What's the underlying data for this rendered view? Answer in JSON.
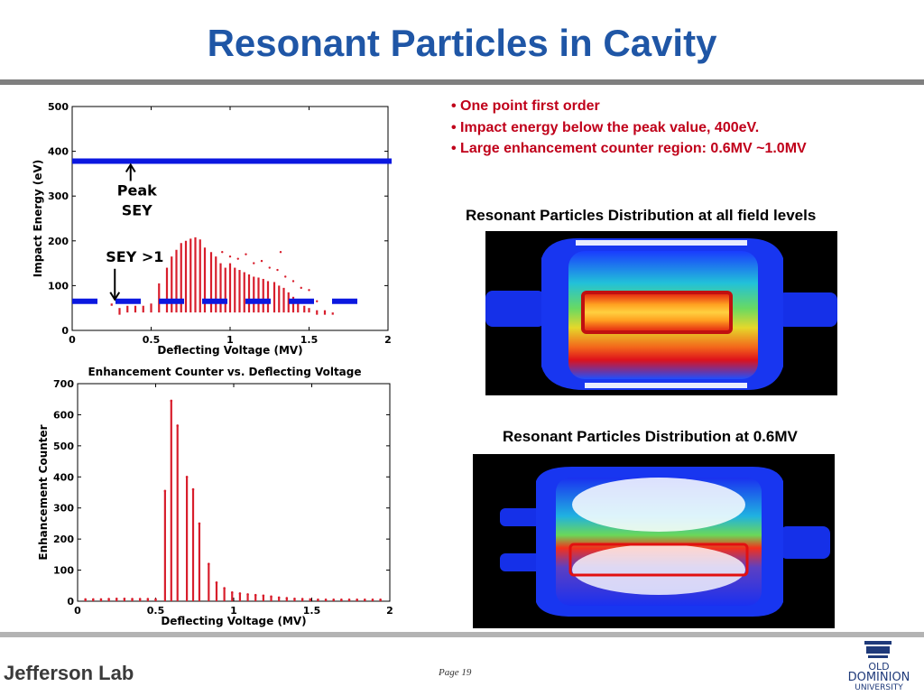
{
  "slide": {
    "title": "Resonant Particles in Cavity",
    "page": "Page 19"
  },
  "bullets": [
    "• One point first order",
    "• Impact energy below the peak value, 400eV.",
    "• Large enhancement counter region: 0.6MV ~1.0MV"
  ],
  "captions": {
    "all_levels": "Resonant Particles Distribution at all field levels",
    "at_06": "Resonant Particles Distribution at 0.6MV"
  },
  "logos": {
    "jefferson": "Jefferson Lab",
    "odu_line1": "OLD",
    "odu_line2": "DOMINION",
    "odu_line3": "UNIVERSITY"
  },
  "colors": {
    "title": "#1f56a6",
    "bullet_text": "#c0001a",
    "data_red": "#d81e2c",
    "sey_blue": "#0b18e0"
  },
  "chart_data": [
    {
      "type": "scatter",
      "title": "",
      "xlabel": "Deflecting Voltage (MV)",
      "ylabel": "Impact Energy (eV)",
      "xlim": [
        0,
        2
      ],
      "ylim": [
        0,
        500
      ],
      "xticks": [
        0,
        0.5,
        1,
        1.5,
        2
      ],
      "xtick_labels": [
        "0",
        "0.5",
        "1",
        "1.5",
        "2"
      ],
      "yticks": [
        0,
        100,
        200,
        300,
        400,
        500
      ],
      "ytick_labels": [
        "0",
        "100",
        "200",
        "300",
        "400",
        "500"
      ],
      "series": [
        {
          "kind": "vertical-spread",
          "columns": [
            {
              "x": 0.25,
              "ymin": 55,
              "ymax": 60
            },
            {
              "x": 0.3,
              "ymin": 35,
              "ymax": 50
            },
            {
              "x": 0.35,
              "ymin": 40,
              "ymax": 55
            },
            {
              "x": 0.4,
              "ymin": 40,
              "ymax": 55
            },
            {
              "x": 0.45,
              "ymin": 40,
              "ymax": 55
            },
            {
              "x": 0.5,
              "ymin": 40,
              "ymax": 60
            },
            {
              "x": 0.55,
              "ymin": 40,
              "ymax": 105
            },
            {
              "x": 0.6,
              "ymin": 40,
              "ymax": 140
            },
            {
              "x": 0.63,
              "ymin": 40,
              "ymax": 165
            },
            {
              "x": 0.66,
              "ymin": 40,
              "ymax": 180
            },
            {
              "x": 0.69,
              "ymin": 40,
              "ymax": 195
            },
            {
              "x": 0.72,
              "ymin": 40,
              "ymax": 200
            },
            {
              "x": 0.75,
              "ymin": 40,
              "ymax": 205
            },
            {
              "x": 0.78,
              "ymin": 40,
              "ymax": 208
            },
            {
              "x": 0.81,
              "ymin": 40,
              "ymax": 203
            },
            {
              "x": 0.84,
              "ymin": 40,
              "ymax": 185
            },
            {
              "x": 0.88,
              "ymin": 40,
              "ymax": 175
            },
            {
              "x": 0.91,
              "ymin": 40,
              "ymax": 165
            },
            {
              "x": 0.94,
              "ymin": 40,
              "ymax": 150
            },
            {
              "x": 0.97,
              "ymin": 40,
              "ymax": 140
            },
            {
              "x": 1.0,
              "ymin": 40,
              "ymax": 150
            },
            {
              "x": 1.03,
              "ymin": 40,
              "ymax": 140
            },
            {
              "x": 1.06,
              "ymin": 40,
              "ymax": 135
            },
            {
              "x": 1.09,
              "ymin": 40,
              "ymax": 130
            },
            {
              "x": 1.12,
              "ymin": 40,
              "ymax": 125
            },
            {
              "x": 1.15,
              "ymin": 40,
              "ymax": 120
            },
            {
              "x": 1.18,
              "ymin": 40,
              "ymax": 118
            },
            {
              "x": 1.21,
              "ymin": 40,
              "ymax": 115
            },
            {
              "x": 1.24,
              "ymin": 40,
              "ymax": 110
            },
            {
              "x": 1.28,
              "ymin": 40,
              "ymax": 108
            },
            {
              "x": 1.31,
              "ymin": 40,
              "ymax": 100
            },
            {
              "x": 1.34,
              "ymin": 40,
              "ymax": 95
            },
            {
              "x": 1.37,
              "ymin": 40,
              "ymax": 85
            },
            {
              "x": 1.4,
              "ymin": 40,
              "ymax": 75
            },
            {
              "x": 1.43,
              "ymin": 40,
              "ymax": 65
            },
            {
              "x": 1.47,
              "ymin": 40,
              "ymax": 55
            },
            {
              "x": 1.5,
              "ymin": 40,
              "ymax": 50
            },
            {
              "x": 1.55,
              "ymin": 35,
              "ymax": 45
            },
            {
              "x": 1.6,
              "ymin": 35,
              "ymax": 45
            },
            {
              "x": 1.65,
              "ymin": 35,
              "ymax": 40
            }
          ],
          "scatter_points": [
            {
              "x": 0.95,
              "y": 175
            },
            {
              "x": 1.0,
              "y": 165
            },
            {
              "x": 1.05,
              "y": 160
            },
            {
              "x": 1.1,
              "y": 170
            },
            {
              "x": 1.15,
              "y": 150
            },
            {
              "x": 1.2,
              "y": 155
            },
            {
              "x": 1.25,
              "y": 140
            },
            {
              "x": 1.3,
              "y": 135
            },
            {
              "x": 1.35,
              "y": 120
            },
            {
              "x": 1.4,
              "y": 110
            },
            {
              "x": 1.45,
              "y": 95
            },
            {
              "x": 1.5,
              "y": 90
            },
            {
              "x": 1.55,
              "y": 65
            },
            {
              "x": 1.32,
              "y": 175
            }
          ]
        }
      ],
      "reference_lines": [
        {
          "name": "Peak SEY",
          "y": 378,
          "style": "solid"
        },
        {
          "name": "SEY >1",
          "y": 65,
          "style": "dashed"
        }
      ],
      "annotations": [
        {
          "text_lines": [
            "Peak",
            "SEY"
          ],
          "arrow_to": {
            "x": 0.37,
            "y": 378
          }
        },
        {
          "text": "SEY >1",
          "arrow_to": {
            "x": 0.27,
            "y": 65
          }
        }
      ]
    },
    {
      "type": "bar",
      "title": "Enhancement Counter vs. Deflecting Voltage",
      "xlabel": "Deflecting Voltage (MV)",
      "ylabel": "Enhancement Counter",
      "xlim": [
        0,
        2
      ],
      "ylim": [
        0,
        700
      ],
      "xticks": [
        0,
        0.5,
        1,
        1.5,
        2
      ],
      "xtick_labels": [
        "0",
        "0.5",
        "1",
        "1.5",
        "2"
      ],
      "yticks": [
        0,
        100,
        200,
        300,
        400,
        500,
        600,
        700
      ],
      "ytick_labels": [
        "0",
        "100",
        "200",
        "300",
        "400",
        "500",
        "600",
        "700"
      ],
      "spikes": [
        {
          "x": 0.05,
          "y": 6
        },
        {
          "x": 0.1,
          "y": 6
        },
        {
          "x": 0.15,
          "y": 6
        },
        {
          "x": 0.2,
          "y": 7
        },
        {
          "x": 0.25,
          "y": 8
        },
        {
          "x": 0.3,
          "y": 8
        },
        {
          "x": 0.35,
          "y": 7
        },
        {
          "x": 0.4,
          "y": 7
        },
        {
          "x": 0.45,
          "y": 7
        },
        {
          "x": 0.5,
          "y": 6
        },
        {
          "x": 0.56,
          "y": 355
        },
        {
          "x": 0.6,
          "y": 645
        },
        {
          "x": 0.64,
          "y": 565
        },
        {
          "x": 0.7,
          "y": 400
        },
        {
          "x": 0.74,
          "y": 360
        },
        {
          "x": 0.78,
          "y": 250
        },
        {
          "x": 0.84,
          "y": 120
        },
        {
          "x": 0.89,
          "y": 60
        },
        {
          "x": 0.94,
          "y": 42
        },
        {
          "x": 0.99,
          "y": 28
        },
        {
          "x": 1.04,
          "y": 25
        },
        {
          "x": 1.09,
          "y": 22
        },
        {
          "x": 1.14,
          "y": 20
        },
        {
          "x": 1.19,
          "y": 18
        },
        {
          "x": 1.24,
          "y": 15
        },
        {
          "x": 1.29,
          "y": 12
        },
        {
          "x": 1.34,
          "y": 10
        },
        {
          "x": 1.39,
          "y": 8
        },
        {
          "x": 1.44,
          "y": 7
        },
        {
          "x": 1.49,
          "y": 6
        },
        {
          "x": 1.54,
          "y": 5
        },
        {
          "x": 1.59,
          "y": 5
        },
        {
          "x": 1.64,
          "y": 5
        },
        {
          "x": 1.69,
          "y": 5
        },
        {
          "x": 1.74,
          "y": 5
        },
        {
          "x": 1.79,
          "y": 5
        },
        {
          "x": 1.84,
          "y": 5
        },
        {
          "x": 1.89,
          "y": 5
        },
        {
          "x": 1.94,
          "y": 5
        }
      ]
    }
  ]
}
